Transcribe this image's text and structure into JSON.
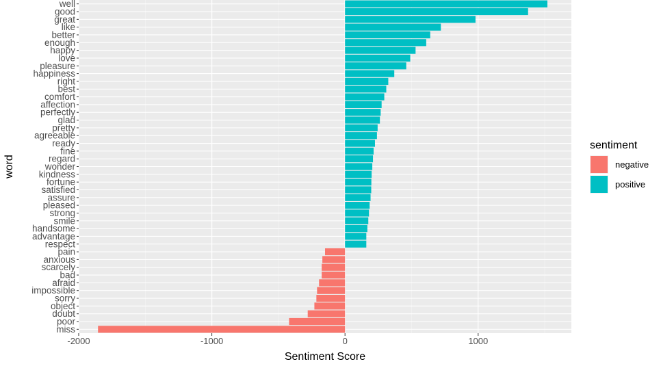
{
  "chart_data": {
    "type": "bar",
    "orientation": "horizontal",
    "title": "",
    "xlabel": "Sentiment Score",
    "ylabel": "word",
    "xlim": [
      -2000,
      1700
    ],
    "xticks": [
      -2000,
      -1000,
      0,
      1000
    ],
    "xtick_labels": [
      "-2000",
      "-1000",
      "0",
      "1000"
    ],
    "grid": true,
    "legend_position": "right",
    "legend": {
      "title": "sentiment",
      "entries": [
        {
          "label": "negative",
          "color": "#F8766D"
        },
        {
          "label": "positive",
          "color": "#00BFC4"
        }
      ]
    },
    "categories": [
      "well",
      "good",
      "great",
      "like",
      "better",
      "enough",
      "happy",
      "love",
      "pleasure",
      "happiness",
      "right",
      "best",
      "comfort",
      "affection",
      "perfectly",
      "glad",
      "pretty",
      "agreeable",
      "ready",
      "fine",
      "regard",
      "wonder",
      "kindness",
      "fortune",
      "satisfied",
      "assure",
      "pleased",
      "strong",
      "smile",
      "handsome",
      "advantage",
      "respect",
      "pain",
      "anxious",
      "scarcely",
      "bad",
      "afraid",
      "impossible",
      "sorry",
      "object",
      "doubt",
      "poor",
      "miss"
    ],
    "values": [
      1520,
      1375,
      980,
      720,
      640,
      610,
      530,
      490,
      460,
      370,
      325,
      310,
      295,
      275,
      268,
      262,
      245,
      240,
      225,
      215,
      210,
      205,
      200,
      198,
      197,
      192,
      185,
      180,
      175,
      168,
      160,
      160,
      -150,
      -170,
      -175,
      -175,
      -195,
      -210,
      -215,
      -230,
      -280,
      -420,
      -1855
    ],
    "sentiment": [
      "positive",
      "positive",
      "positive",
      "positive",
      "positive",
      "positive",
      "positive",
      "positive",
      "positive",
      "positive",
      "positive",
      "positive",
      "positive",
      "positive",
      "positive",
      "positive",
      "positive",
      "positive",
      "positive",
      "positive",
      "positive",
      "positive",
      "positive",
      "positive",
      "positive",
      "positive",
      "positive",
      "positive",
      "positive",
      "positive",
      "positive",
      "positive",
      "negative",
      "negative",
      "negative",
      "negative",
      "negative",
      "negative",
      "negative",
      "negative",
      "negative",
      "negative",
      "negative"
    ]
  }
}
